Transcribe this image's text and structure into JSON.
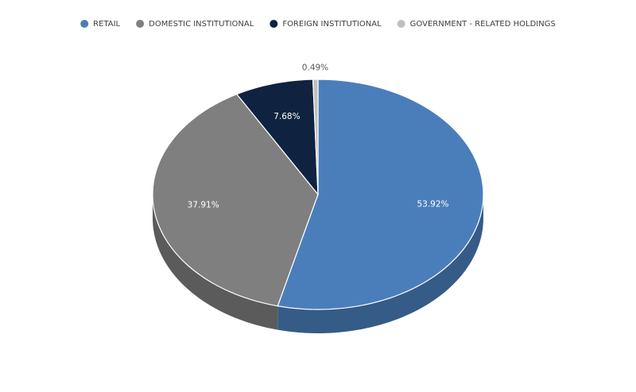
{
  "chart_data": {
    "type": "pie",
    "categories": [
      "RETAIL",
      "DOMESTIC INSTITUTIONAL",
      "FOREIGN INSTITUTIONAL",
      "GOVERNMENT - RELATED HOLDINGS"
    ],
    "values": [
      53.92,
      37.91,
      7.68,
      0.49
    ],
    "value_labels": [
      "53.92%",
      "37.91%",
      "7.68%",
      "0.49%"
    ],
    "colors": [
      "#4a7ebb",
      "#7f7f7f",
      "#0f2340",
      "#bfbfbf"
    ],
    "legend": "top"
  }
}
